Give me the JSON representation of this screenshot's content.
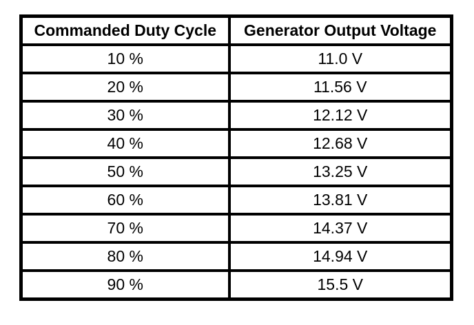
{
  "table": {
    "columns": [
      {
        "label": "Commanded Duty Cycle"
      },
      {
        "label": "Generator Output Voltage"
      }
    ],
    "rows": [
      {
        "duty_cycle": "10 %",
        "voltage": "11.0 V"
      },
      {
        "duty_cycle": "20 %",
        "voltage": "11.56 V"
      },
      {
        "duty_cycle": "30 %",
        "voltage": "12.12 V"
      },
      {
        "duty_cycle": "40 %",
        "voltage": "12.68 V"
      },
      {
        "duty_cycle": "50 %",
        "voltage": "13.25 V"
      },
      {
        "duty_cycle": "60 %",
        "voltage": "13.81 V"
      },
      {
        "duty_cycle": "70 %",
        "voltage": "14.37 V"
      },
      {
        "duty_cycle": "80 %",
        "voltage": "14.94 V"
      },
      {
        "duty_cycle": "90 %",
        "voltage": "15.5 V"
      }
    ]
  },
  "chart_data": {
    "type": "table",
    "title": "",
    "columns": [
      "Commanded Duty Cycle",
      "Generator Output Voltage"
    ],
    "duty_cycle_percent": [
      10,
      20,
      30,
      40,
      50,
      60,
      70,
      80,
      90
    ],
    "generator_output_voltage_v": [
      11.0,
      11.56,
      12.12,
      12.68,
      13.25,
      13.81,
      14.37,
      14.94,
      15.5
    ]
  },
  "colors": {
    "border": "#000000",
    "background": "#ffffff",
    "text": "#000000"
  }
}
